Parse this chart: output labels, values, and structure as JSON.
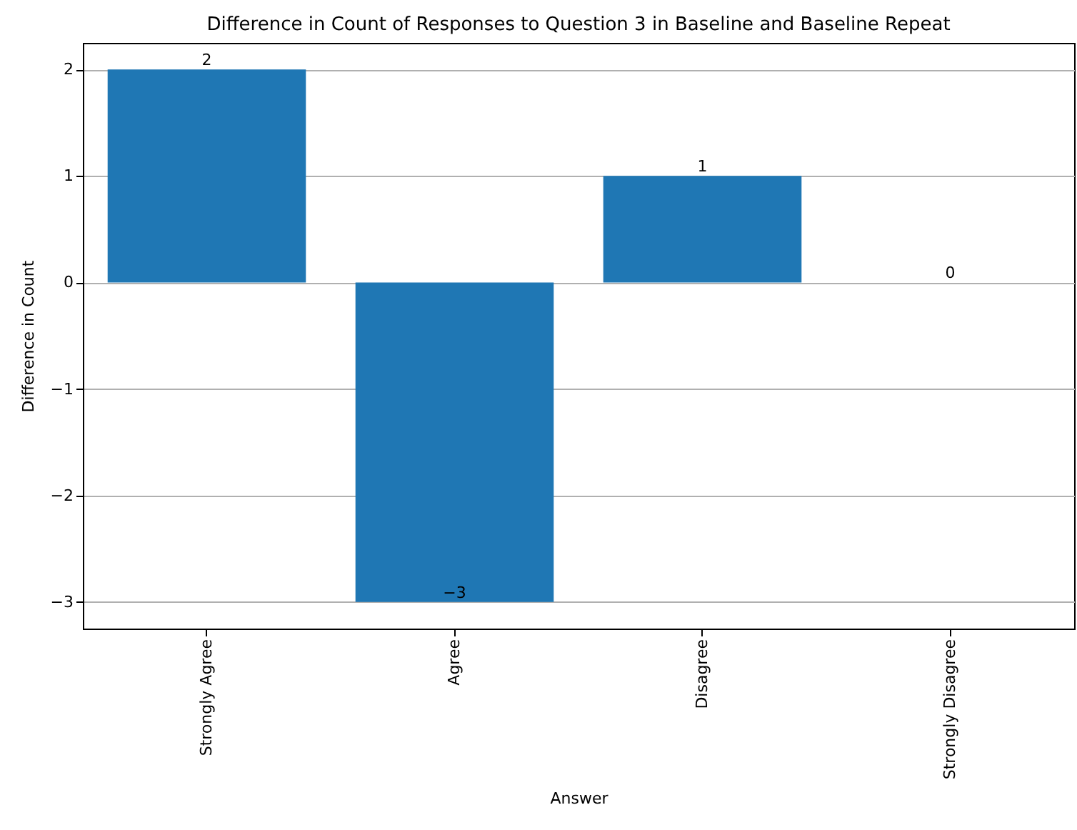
{
  "chart_data": {
    "type": "bar",
    "title": "Difference in Count of Responses to Question 3 in Baseline and Baseline Repeat",
    "xlabel": "Answer",
    "ylabel": "Difference in Count",
    "categories": [
      "Strongly Agree",
      "Agree",
      "Disagree",
      "Strongly Disagree"
    ],
    "values": [
      2,
      -3,
      1,
      0
    ],
    "color": "#1f77b4",
    "ylim": [
      -3.25,
      2.25
    ],
    "yticks": [
      -3,
      -2,
      -1,
      0,
      1,
      2
    ],
    "grid": "y",
    "data_labels": true
  }
}
